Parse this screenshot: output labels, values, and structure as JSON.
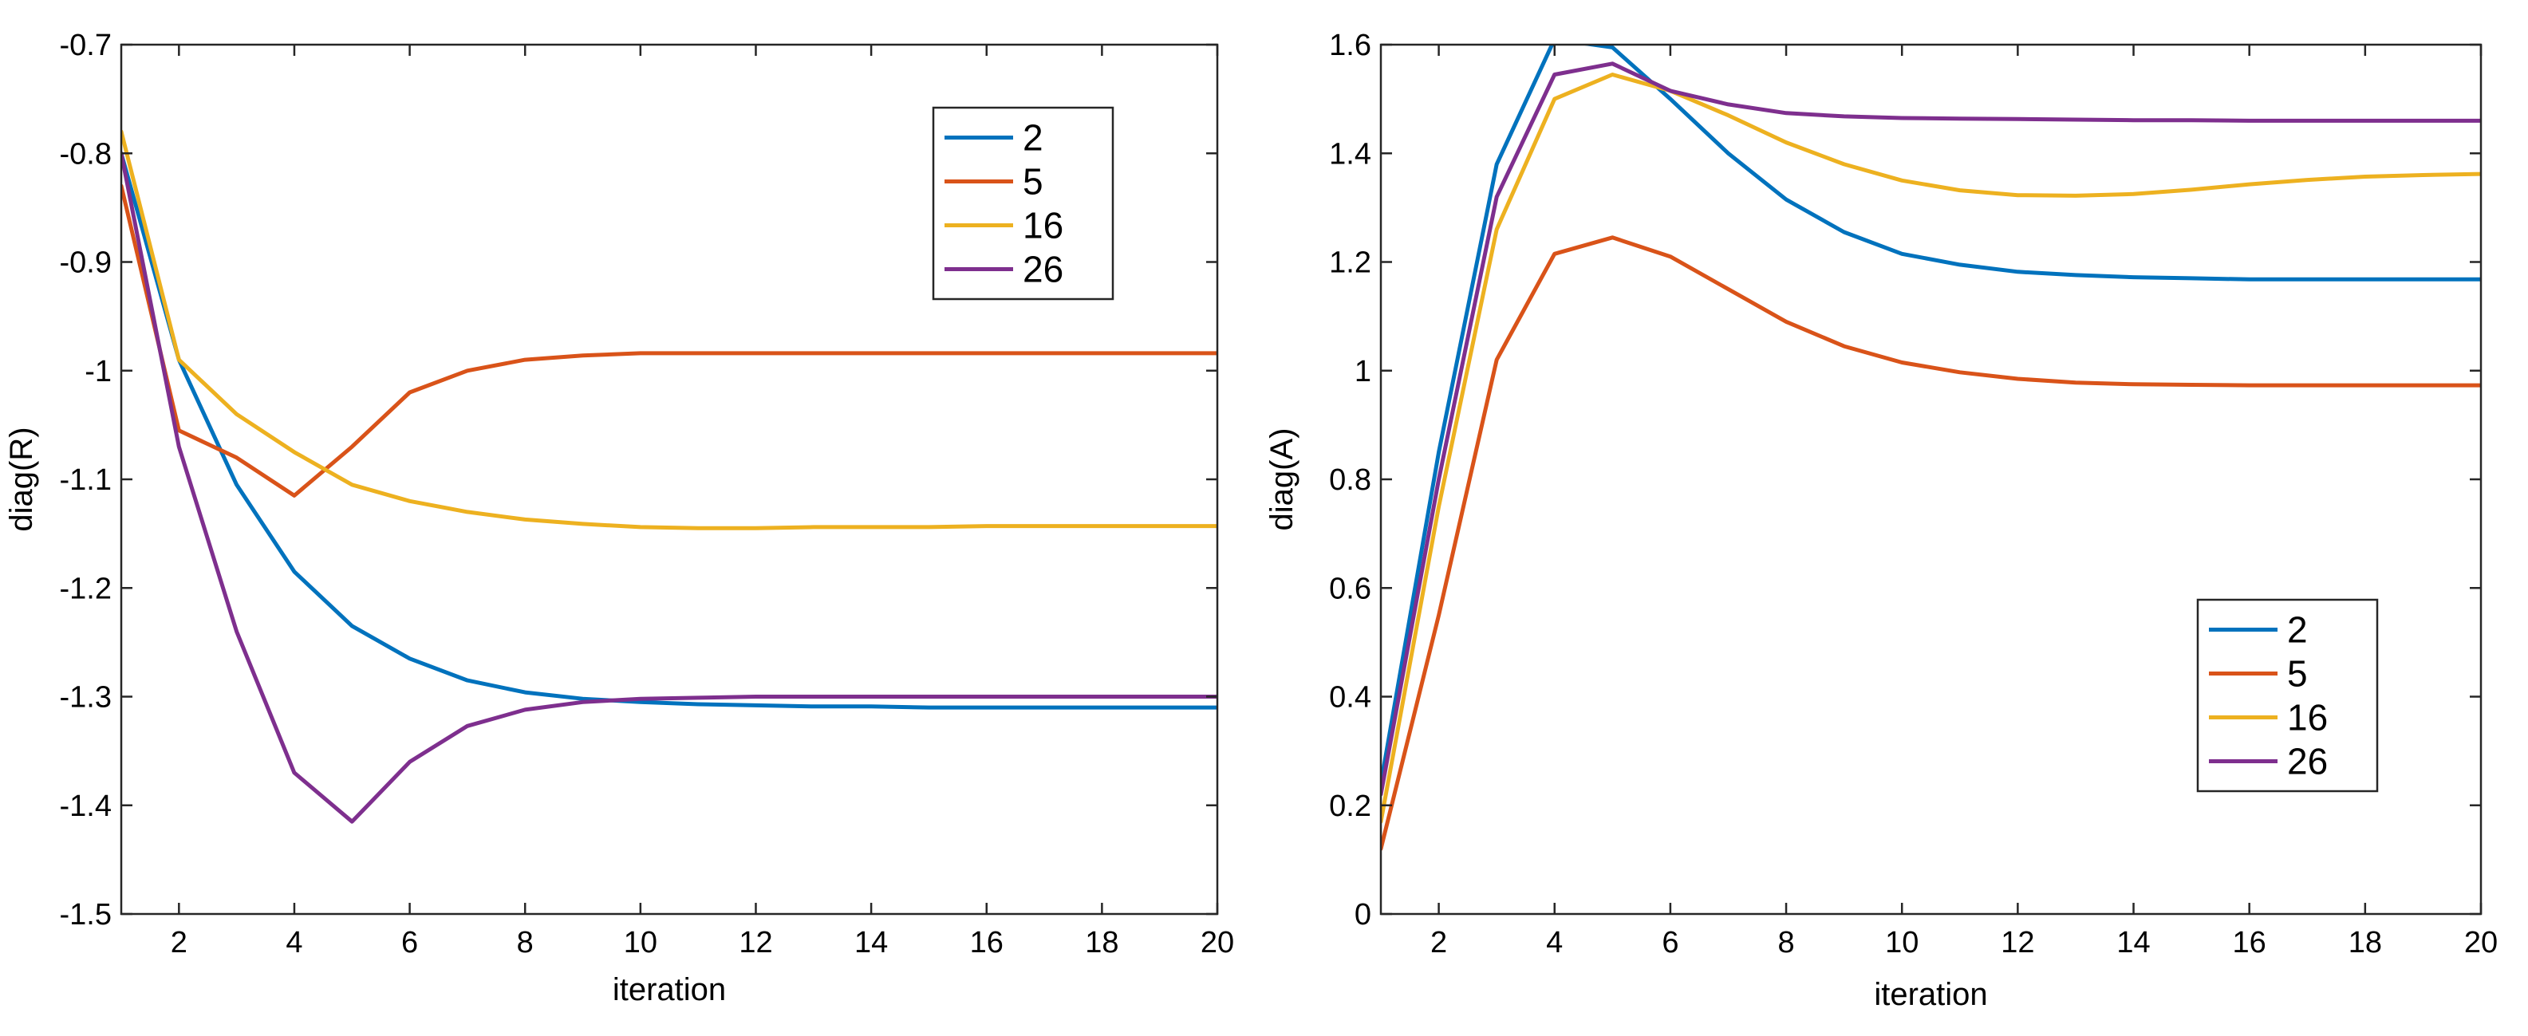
{
  "chart_data": [
    {
      "type": "line",
      "title": "",
      "xlabel": "iteration",
      "ylabel": "diag(R)",
      "xlim": [
        1,
        20
      ],
      "ylim": [
        -1.5,
        -0.7
      ],
      "xticks": [
        2,
        4,
        6,
        8,
        10,
        12,
        14,
        16,
        18,
        20
      ],
      "yticks": [
        -1.5,
        -1.4,
        -1.3,
        -1.2,
        -1.1,
        -1,
        -0.9,
        -0.8,
        -0.7
      ],
      "x": [
        1,
        2,
        3,
        4,
        5,
        6,
        7,
        8,
        9,
        10,
        11,
        12,
        13,
        14,
        15,
        16,
        17,
        18,
        19,
        20
      ],
      "legend_position": "top-right",
      "series": [
        {
          "name": "2",
          "color": "#0072BD",
          "values": [
            -0.8,
            -0.99,
            -1.105,
            -1.185,
            -1.235,
            -1.265,
            -1.285,
            -1.296,
            -1.302,
            -1.305,
            -1.307,
            -1.308,
            -1.309,
            -1.309,
            -1.31,
            -1.31,
            -1.31,
            -1.31,
            -1.31,
            -1.31
          ]
        },
        {
          "name": "5",
          "color": "#D95319",
          "values": [
            -0.83,
            -1.055,
            -1.08,
            -1.115,
            -1.07,
            -1.02,
            -1.0,
            -0.99,
            -0.986,
            -0.984,
            -0.984,
            -0.984,
            -0.984,
            -0.984,
            -0.984,
            -0.984,
            -0.984,
            -0.984,
            -0.984,
            -0.984
          ]
        },
        {
          "name": "16",
          "color": "#EDB120",
          "values": [
            -0.78,
            -0.99,
            -1.04,
            -1.075,
            -1.105,
            -1.12,
            -1.13,
            -1.137,
            -1.141,
            -1.144,
            -1.145,
            -1.145,
            -1.144,
            -1.144,
            -1.144,
            -1.143,
            -1.143,
            -1.143,
            -1.143,
            -1.143
          ]
        },
        {
          "name": "26",
          "color": "#7E2F8E",
          "values": [
            -0.8,
            -1.07,
            -1.24,
            -1.37,
            -1.415,
            -1.36,
            -1.327,
            -1.312,
            -1.305,
            -1.302,
            -1.301,
            -1.3,
            -1.3,
            -1.3,
            -1.3,
            -1.3,
            -1.3,
            -1.3,
            -1.3,
            -1.3
          ]
        }
      ]
    },
    {
      "type": "line",
      "title": "",
      "xlabel": "iteration",
      "ylabel": "diag(A)",
      "xlim": [
        1,
        20
      ],
      "ylim": [
        0,
        1.6
      ],
      "xticks": [
        2,
        4,
        6,
        8,
        10,
        12,
        14,
        16,
        18,
        20
      ],
      "yticks": [
        0,
        0.2,
        0.4,
        0.6,
        0.8,
        1,
        1.2,
        1.4,
        1.6
      ],
      "x": [
        1,
        2,
        3,
        4,
        5,
        6,
        7,
        8,
        9,
        10,
        11,
        12,
        13,
        14,
        15,
        16,
        17,
        18,
        19,
        20
      ],
      "legend_position": "lower-right",
      "series": [
        {
          "name": "2",
          "color": "#0072BD",
          "values": [
            0.24,
            0.85,
            1.38,
            1.61,
            1.595,
            1.5,
            1.4,
            1.315,
            1.255,
            1.215,
            1.195,
            1.182,
            1.176,
            1.172,
            1.17,
            1.168,
            1.168,
            1.168,
            1.168,
            1.168
          ]
        },
        {
          "name": "5",
          "color": "#D95319",
          "values": [
            0.12,
            0.55,
            1.02,
            1.215,
            1.245,
            1.21,
            1.15,
            1.09,
            1.045,
            1.015,
            0.997,
            0.985,
            0.978,
            0.975,
            0.974,
            0.973,
            0.973,
            0.973,
            0.973,
            0.973
          ]
        },
        {
          "name": "16",
          "color": "#EDB120",
          "values": [
            0.17,
            0.75,
            1.26,
            1.5,
            1.545,
            1.515,
            1.47,
            1.42,
            1.38,
            1.35,
            1.332,
            1.323,
            1.322,
            1.325,
            1.333,
            1.343,
            1.351,
            1.357,
            1.36,
            1.362
          ]
        },
        {
          "name": "26",
          "color": "#7E2F8E",
          "values": [
            0.22,
            0.8,
            1.32,
            1.545,
            1.565,
            1.515,
            1.49,
            1.474,
            1.468,
            1.465,
            1.464,
            1.463,
            1.462,
            1.461,
            1.461,
            1.46,
            1.46,
            1.46,
            1.46,
            1.46
          ]
        }
      ]
    }
  ]
}
